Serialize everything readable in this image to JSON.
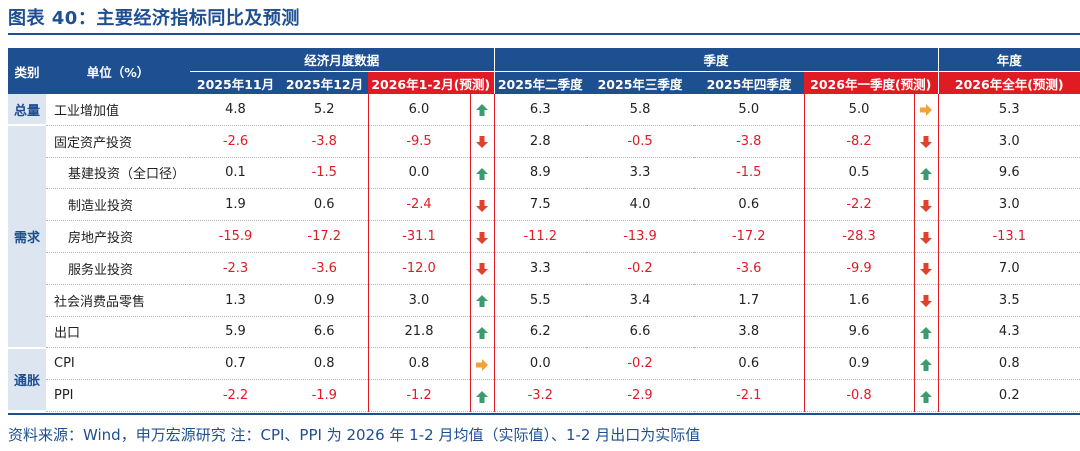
{
  "title": "图表 40：主要经济指标同比及预测",
  "header": {
    "category": "类别",
    "unit": "单位（%）",
    "groups": {
      "monthly": "经济月度数据",
      "quarterly": "季度",
      "annual": "年度"
    },
    "cols": [
      "2025年11月",
      "2025年12月",
      "2026年1-2月(预测)",
      "2025年二季度",
      "2025年三季度",
      "2025年四季度",
      "2026年一季度(预测)",
      "2026年全年(预测)"
    ]
  },
  "categories": {
    "total": "总量",
    "demand": "需求",
    "inflation": "通胀"
  },
  "rows": [
    {
      "label": "工业增加值",
      "v": [
        "4.8",
        "5.2",
        "6.0",
        "6.3",
        "5.8",
        "5.0",
        "5.0",
        "5.3"
      ],
      "arrows": [
        "up-green",
        "right-orange"
      ]
    },
    {
      "label": "固定资产投资",
      "v": [
        "-2.6",
        "-3.8",
        "-9.5",
        "2.8",
        "-0.5",
        "-3.8",
        "-8.2",
        "3.0"
      ],
      "arrows": [
        "down-red",
        "down-red"
      ]
    },
    {
      "label": "基建投资（全口径）",
      "v": [
        "0.1",
        "-1.5",
        "0.0",
        "8.9",
        "3.3",
        "-1.5",
        "0.5",
        "9.6"
      ],
      "arrows": [
        "up-green",
        "up-green"
      ]
    },
    {
      "label": "制造业投资",
      "v": [
        "1.9",
        "0.6",
        "-2.4",
        "7.5",
        "4.0",
        "0.6",
        "-2.2",
        "3.0"
      ],
      "arrows": [
        "down-red",
        "down-red"
      ]
    },
    {
      "label": "房地产投资",
      "v": [
        "-15.9",
        "-17.2",
        "-31.1",
        "-11.2",
        "-13.9",
        "-17.2",
        "-28.3",
        "-13.1"
      ],
      "arrows": [
        "down-red",
        "down-red"
      ]
    },
    {
      "label": "服务业投资",
      "v": [
        "-2.3",
        "-3.6",
        "-12.0",
        "3.3",
        "-0.2",
        "-3.6",
        "-9.9",
        "7.0"
      ],
      "arrows": [
        "down-red",
        "down-red"
      ]
    },
    {
      "label": "社会消费品零售",
      "v": [
        "1.3",
        "0.9",
        "3.0",
        "5.5",
        "3.4",
        "1.7",
        "1.6",
        "3.5"
      ],
      "arrows": [
        "up-green",
        "down-red"
      ]
    },
    {
      "label": "出口",
      "v": [
        "5.9",
        "6.6",
        "21.8",
        "6.2",
        "6.6",
        "3.8",
        "9.6",
        "4.3"
      ],
      "arrows": [
        "up-green",
        "up-green"
      ]
    },
    {
      "label": "CPI",
      "v": [
        "0.7",
        "0.8",
        "0.8",
        "0.0",
        "-0.2",
        "0.6",
        "0.9",
        "0.8"
      ],
      "arrows": [
        "right-orange",
        "up-green"
      ]
    },
    {
      "label": "PPI",
      "v": [
        "-2.2",
        "-1.9",
        "-1.2",
        "-3.2",
        "-2.9",
        "-2.1",
        "-0.8",
        "0.2"
      ],
      "arrows": [
        "up-green",
        "up-green"
      ]
    }
  ],
  "note": "资料来源：Wind，申万宏源研究  注：CPI、PPI 为 2026 年 1-2 月均值（实际值）、1-2 月出口为实际值",
  "colors": {
    "brand": "#1e4f91",
    "highlight": "#e01b24",
    "up": "#3c9a6e",
    "down": "#e0412b",
    "flat": "#f0a33a"
  }
}
